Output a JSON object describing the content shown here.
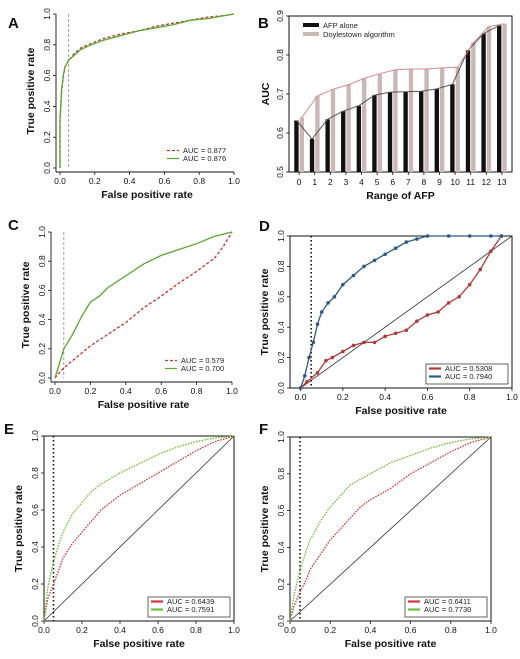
{
  "chart_data": [
    {
      "panel": "A",
      "type": "line",
      "xlabel": "False positive rate",
      "ylabel": "True positive rate",
      "xlim": [
        0,
        1
      ],
      "ylim": [
        0,
        1
      ],
      "grid": false,
      "legend_position": "bottom-right",
      "xticks": [
        "0.0",
        "0.2",
        "0.4",
        "0.6",
        "0.8",
        "1.0"
      ],
      "yticks": [
        "0.0",
        "0.2",
        "0.4",
        "0.6",
        "0.8",
        "1.0"
      ],
      "ref_x": 0.05,
      "series": [
        {
          "name": "AUC = 0.877",
          "color": "#c0392b",
          "dash": "3,2",
          "x": [
            0,
            0,
            0.01,
            0.02,
            0.03,
            0.05,
            0.08,
            0.12,
            0.18,
            0.25,
            0.35,
            0.45,
            0.55,
            0.65,
            0.75,
            0.85,
            0.95,
            1
          ],
          "y": [
            0,
            0.3,
            0.5,
            0.6,
            0.66,
            0.7,
            0.74,
            0.78,
            0.81,
            0.84,
            0.87,
            0.89,
            0.92,
            0.94,
            0.96,
            0.98,
            0.99,
            1
          ]
        },
        {
          "name": "AUC = 0.876",
          "color": "#5aa832",
          "dash": "",
          "x": [
            0,
            0,
            0.01,
            0.02,
            0.03,
            0.05,
            0.08,
            0.12,
            0.18,
            0.25,
            0.35,
            0.45,
            0.55,
            0.65,
            0.75,
            0.85,
            0.95,
            1
          ],
          "y": [
            0,
            0.32,
            0.52,
            0.61,
            0.66,
            0.7,
            0.73,
            0.77,
            0.8,
            0.83,
            0.86,
            0.89,
            0.91,
            0.93,
            0.96,
            0.97,
            0.99,
            1
          ]
        }
      ]
    },
    {
      "panel": "B",
      "type": "bar",
      "xlabel": "Range of AFP",
      "ylabel": "AUC",
      "ylim": [
        0.5,
        0.9
      ],
      "grid": false,
      "legend_position": "top-left",
      "categories": [
        "0",
        "1",
        "2",
        "3",
        "4",
        "5",
        "6",
        "7",
        "8",
        "9",
        "10",
        "11",
        "12",
        "13"
      ],
      "yticks": [
        "0.5",
        "0.6",
        "0.7",
        "0.8",
        "0.9"
      ],
      "series": [
        {
          "name": "AFP alone",
          "color": "#111111",
          "line_color": "#555555",
          "values": [
            0.632,
            0.585,
            0.635,
            0.656,
            0.67,
            0.697,
            0.705,
            0.706,
            0.707,
            0.713,
            0.725,
            0.812,
            0.855,
            0.876
          ]
        },
        {
          "name": "Doylestown algorithm",
          "color": "#c9b8b6",
          "line_color": "#d98c8c",
          "values": [
            0.64,
            0.695,
            0.712,
            0.724,
            0.74,
            0.752,
            0.762,
            0.764,
            0.764,
            0.767,
            0.769,
            0.832,
            0.873,
            0.88
          ]
        }
      ]
    },
    {
      "panel": "C",
      "type": "line",
      "xlabel": "False positive rate",
      "ylabel": "True positive rate",
      "xlim": [
        0,
        1
      ],
      "ylim": [
        0,
        1
      ],
      "grid": false,
      "legend_position": "bottom-right",
      "xticks": [
        "0.0",
        "0.2",
        "0.4",
        "0.6",
        "0.8",
        "1.0"
      ],
      "yticks": [
        "0.0",
        "0.2",
        "0.4",
        "0.6",
        "0.8",
        "1.0"
      ],
      "ref_x": 0.05,
      "series": [
        {
          "name": "AUC = 0.579",
          "color": "#c0392b",
          "dash": "3,2",
          "x": [
            0,
            0.02,
            0.05,
            0.1,
            0.15,
            0.2,
            0.3,
            0.4,
            0.5,
            0.6,
            0.7,
            0.8,
            0.9,
            0.95,
            1
          ],
          "y": [
            0,
            0.03,
            0.07,
            0.12,
            0.17,
            0.22,
            0.3,
            0.38,
            0.48,
            0.56,
            0.65,
            0.73,
            0.82,
            0.9,
            1
          ]
        },
        {
          "name": "AUC = 0.700",
          "color": "#5aa832",
          "dash": "",
          "x": [
            0,
            0.03,
            0.05,
            0.1,
            0.15,
            0.2,
            0.25,
            0.3,
            0.4,
            0.5,
            0.6,
            0.7,
            0.8,
            0.9,
            1
          ],
          "y": [
            0,
            0.12,
            0.2,
            0.3,
            0.42,
            0.52,
            0.56,
            0.62,
            0.7,
            0.78,
            0.84,
            0.88,
            0.92,
            0.97,
            1
          ]
        }
      ]
    },
    {
      "panel": "D",
      "type": "line",
      "xlabel": "False positive rate",
      "ylabel": "True positive rate",
      "xlim": [
        -0.05,
        1
      ],
      "ylim": [
        0,
        1
      ],
      "grid": false,
      "legend_position": "bottom-right",
      "xticks": [
        "0.0",
        "0.2",
        "0.4",
        "0.6",
        "0.8",
        "1.0"
      ],
      "yticks": [
        "0.0",
        "0.2",
        "0.4",
        "0.6",
        "0.8",
        "1.0"
      ],
      "ref_x": 0.05,
      "series": [
        {
          "name": "AUC = 0.5308",
          "color": "#b03a3a",
          "x": [
            0,
            0.03,
            0.08,
            0.12,
            0.15,
            0.2,
            0.25,
            0.3,
            0.35,
            0.4,
            0.45,
            0.5,
            0.55,
            0.6,
            0.65,
            0.7,
            0.75,
            0.8,
            0.85,
            0.9,
            0.95
          ],
          "y": [
            0,
            0.04,
            0.1,
            0.18,
            0.2,
            0.24,
            0.28,
            0.3,
            0.3,
            0.34,
            0.36,
            0.38,
            0.44,
            0.48,
            0.5,
            0.56,
            0.6,
            0.68,
            0.78,
            0.9,
            1
          ]
        },
        {
          "name": "AUC = 0.7940",
          "color": "#2c5a85",
          "x": [
            0,
            0.02,
            0.04,
            0.06,
            0.08,
            0.1,
            0.13,
            0.16,
            0.2,
            0.25,
            0.3,
            0.35,
            0.4,
            0.45,
            0.5,
            0.55,
            0.6,
            0.7,
            0.8,
            0.9,
            0.95
          ],
          "y": [
            0,
            0.08,
            0.2,
            0.3,
            0.42,
            0.5,
            0.56,
            0.6,
            0.68,
            0.74,
            0.8,
            0.84,
            0.88,
            0.92,
            0.96,
            0.98,
            1,
            1,
            1,
            1,
            1
          ]
        }
      ]
    },
    {
      "panel": "E",
      "type": "line",
      "xlabel": "False positive rate",
      "ylabel": "True positive rate",
      "xlim": [
        0,
        1
      ],
      "ylim": [
        0,
        1
      ],
      "grid": false,
      "legend_position": "bottom-right",
      "xticks": [
        "0.0",
        "0.2",
        "0.4",
        "0.6",
        "0.8",
        "1.0"
      ],
      "yticks": [
        "0.0",
        "0.2",
        "0.4",
        "0.6",
        "0.8",
        "1.0"
      ],
      "ref_x": 0.05,
      "series": [
        {
          "name": "AUC = 0.6439",
          "color": "#d03a3a",
          "x": [
            0,
            0.02,
            0.05,
            0.08,
            0.1,
            0.15,
            0.2,
            0.25,
            0.3,
            0.35,
            0.4,
            0.5,
            0.6,
            0.7,
            0.8,
            0.9,
            1
          ],
          "y": [
            0,
            0.12,
            0.2,
            0.28,
            0.34,
            0.42,
            0.48,
            0.54,
            0.6,
            0.64,
            0.68,
            0.74,
            0.8,
            0.86,
            0.92,
            0.97,
            1
          ]
        },
        {
          "name": "AUC = 0.7591",
          "color": "#6fbf3a",
          "x": [
            0,
            0.02,
            0.05,
            0.08,
            0.1,
            0.15,
            0.2,
            0.25,
            0.3,
            0.4,
            0.5,
            0.6,
            0.7,
            0.8,
            0.9,
            1
          ],
          "y": [
            0,
            0.18,
            0.32,
            0.42,
            0.48,
            0.58,
            0.64,
            0.7,
            0.74,
            0.8,
            0.85,
            0.9,
            0.94,
            0.97,
            0.99,
            1
          ]
        }
      ]
    },
    {
      "panel": "F",
      "type": "line",
      "xlabel": "False positive rate",
      "ylabel": "True positive rate",
      "xlim": [
        0,
        1
      ],
      "ylim": [
        0,
        1
      ],
      "grid": false,
      "legend_position": "bottom-right",
      "xticks": [
        "0.0",
        "0.2",
        "0.4",
        "0.6",
        "0.8",
        "1.0"
      ],
      "yticks": [
        "0.0",
        "0.2",
        "0.4",
        "0.6",
        "0.8",
        "1.0"
      ],
      "ref_x": 0.05,
      "series": [
        {
          "name": "AUC = 0.6411",
          "color": "#d03a3a",
          "x": [
            0,
            0.02,
            0.05,
            0.08,
            0.1,
            0.15,
            0.2,
            0.25,
            0.3,
            0.35,
            0.4,
            0.5,
            0.6,
            0.7,
            0.8,
            0.9,
            1
          ],
          "y": [
            0,
            0.08,
            0.16,
            0.22,
            0.28,
            0.36,
            0.44,
            0.5,
            0.56,
            0.62,
            0.66,
            0.72,
            0.8,
            0.86,
            0.92,
            0.97,
            1
          ]
        },
        {
          "name": "AUC = 0.7730",
          "color": "#6fbf3a",
          "x": [
            0,
            0.02,
            0.05,
            0.08,
            0.1,
            0.15,
            0.2,
            0.25,
            0.3,
            0.4,
            0.5,
            0.6,
            0.7,
            0.8,
            0.9,
            1
          ],
          "y": [
            0,
            0.14,
            0.28,
            0.38,
            0.44,
            0.54,
            0.62,
            0.68,
            0.74,
            0.8,
            0.86,
            0.9,
            0.94,
            0.97,
            0.99,
            1
          ]
        }
      ]
    }
  ]
}
